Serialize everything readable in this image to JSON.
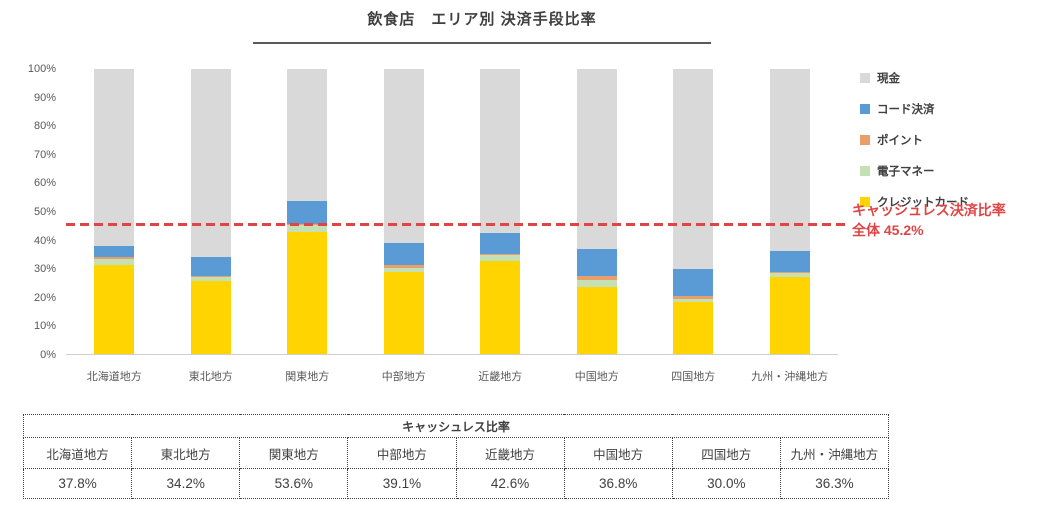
{
  "title": "飲食店　エリア別 決済手段比率",
  "annotation": {
    "line1": "キャッシュレス決済比率",
    "line2": "全体 45.2%",
    "color": "#e04545"
  },
  "chart_data": {
    "type": "bar",
    "stacked": true,
    "title": "飲食店　エリア別 決済手段比率",
    "categories": [
      "北海道地方",
      "東北地方",
      "関東地方",
      "中部地方",
      "近畿地方",
      "中国地方",
      "四国地方",
      "九州・沖縄地方"
    ],
    "series": [
      {
        "name": "クレジットカード",
        "color": "#ffd400",
        "values": [
          31.3,
          25.5,
          42.9,
          28.8,
          32.5,
          23.5,
          18.3,
          27.0
        ]
      },
      {
        "name": "電子マネー",
        "color": "#c5e0b4",
        "values": [
          2.0,
          1.5,
          2.2,
          1.5,
          2.1,
          2.4,
          1.0,
          1.4
        ]
      },
      {
        "name": "ポイント",
        "color": "#e8a06a",
        "values": [
          0.6,
          0.4,
          0.5,
          0.8,
          0.5,
          1.4,
          1.2,
          0.4
        ]
      },
      {
        "name": "コード決済",
        "color": "#5b9bd5",
        "values": [
          3.9,
          6.8,
          8.0,
          8.0,
          7.5,
          9.5,
          9.5,
          7.5
        ]
      },
      {
        "name": "現金",
        "color": "#d9d9d9",
        "values": [
          62.2,
          65.8,
          46.4,
          60.9,
          57.4,
          63.2,
          70.0,
          63.7
        ]
      }
    ],
    "ylim": [
      0,
      100
    ],
    "y_ticks": [
      "100%",
      "90%",
      "80%",
      "70%",
      "60%",
      "50%",
      "40%",
      "30%",
      "20%",
      "10%",
      "0%"
    ],
    "grid": false,
    "legend_position": "right",
    "reference_line": {
      "value": 45.2,
      "color": "#e04545",
      "style": "dashed"
    }
  },
  "legend": {
    "items": [
      {
        "label": "現金",
        "color": "#d9d9d9"
      },
      {
        "label": "コード決済",
        "color": "#5b9bd5"
      },
      {
        "label": "ポイント",
        "color": "#e8a06a"
      },
      {
        "label": "電子マネー",
        "color": "#c5e0b4"
      },
      {
        "label": "クレジットカード",
        "color": "#ffd400"
      }
    ]
  },
  "table": {
    "title": "キャッシュレス比率",
    "columns": [
      "北海道地方",
      "東北地方",
      "関東地方",
      "中部地方",
      "近畿地方",
      "中国地方",
      "四国地方",
      "九州・沖縄地方"
    ],
    "values": [
      "37.8%",
      "34.2%",
      "53.6%",
      "39.1%",
      "42.6%",
      "36.8%",
      "30.0%",
      "36.3%"
    ]
  }
}
